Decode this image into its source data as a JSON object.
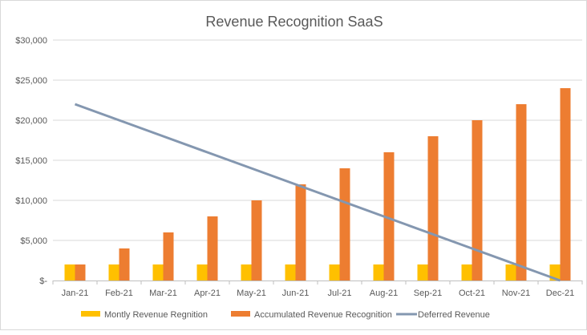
{
  "chart_data": {
    "type": "bar",
    "title": "Revenue Recognition SaaS",
    "xlabel": "",
    "ylabel": "",
    "ylim": [
      0,
      30000
    ],
    "yticks": [
      0,
      5000,
      10000,
      15000,
      20000,
      25000,
      30000
    ],
    "ytick_labels": [
      "$-",
      "$5,000",
      "$10,000",
      "$15,000",
      "$20,000",
      "$25,000",
      "$30,000"
    ],
    "grid": true,
    "legend_position": "bottom",
    "categories": [
      "Jan-21",
      "Feb-21",
      "Mar-21",
      "Apr-21",
      "May-21",
      "Jun-21",
      "Jul-21",
      "Aug-21",
      "Sep-21",
      "Oct-21",
      "Nov-21",
      "Dec-21"
    ],
    "series": [
      {
        "name": "Montly Revenue Regnition",
        "type": "bar",
        "color": "#FFC000",
        "values": [
          2000,
          2000,
          2000,
          2000,
          2000,
          2000,
          2000,
          2000,
          2000,
          2000,
          2000,
          2000
        ]
      },
      {
        "name": "Accumulated Revenue Recognition",
        "type": "bar",
        "color": "#ED7D31",
        "values": [
          2000,
          4000,
          6000,
          8000,
          10000,
          12000,
          14000,
          16000,
          18000,
          20000,
          22000,
          24000
        ]
      },
      {
        "name": "Deferred Revenue",
        "type": "line",
        "color": "#8497B0",
        "values": [
          22000,
          20000,
          18000,
          16000,
          14000,
          12000,
          10000,
          8000,
          6000,
          4000,
          2000,
          0
        ]
      }
    ]
  }
}
